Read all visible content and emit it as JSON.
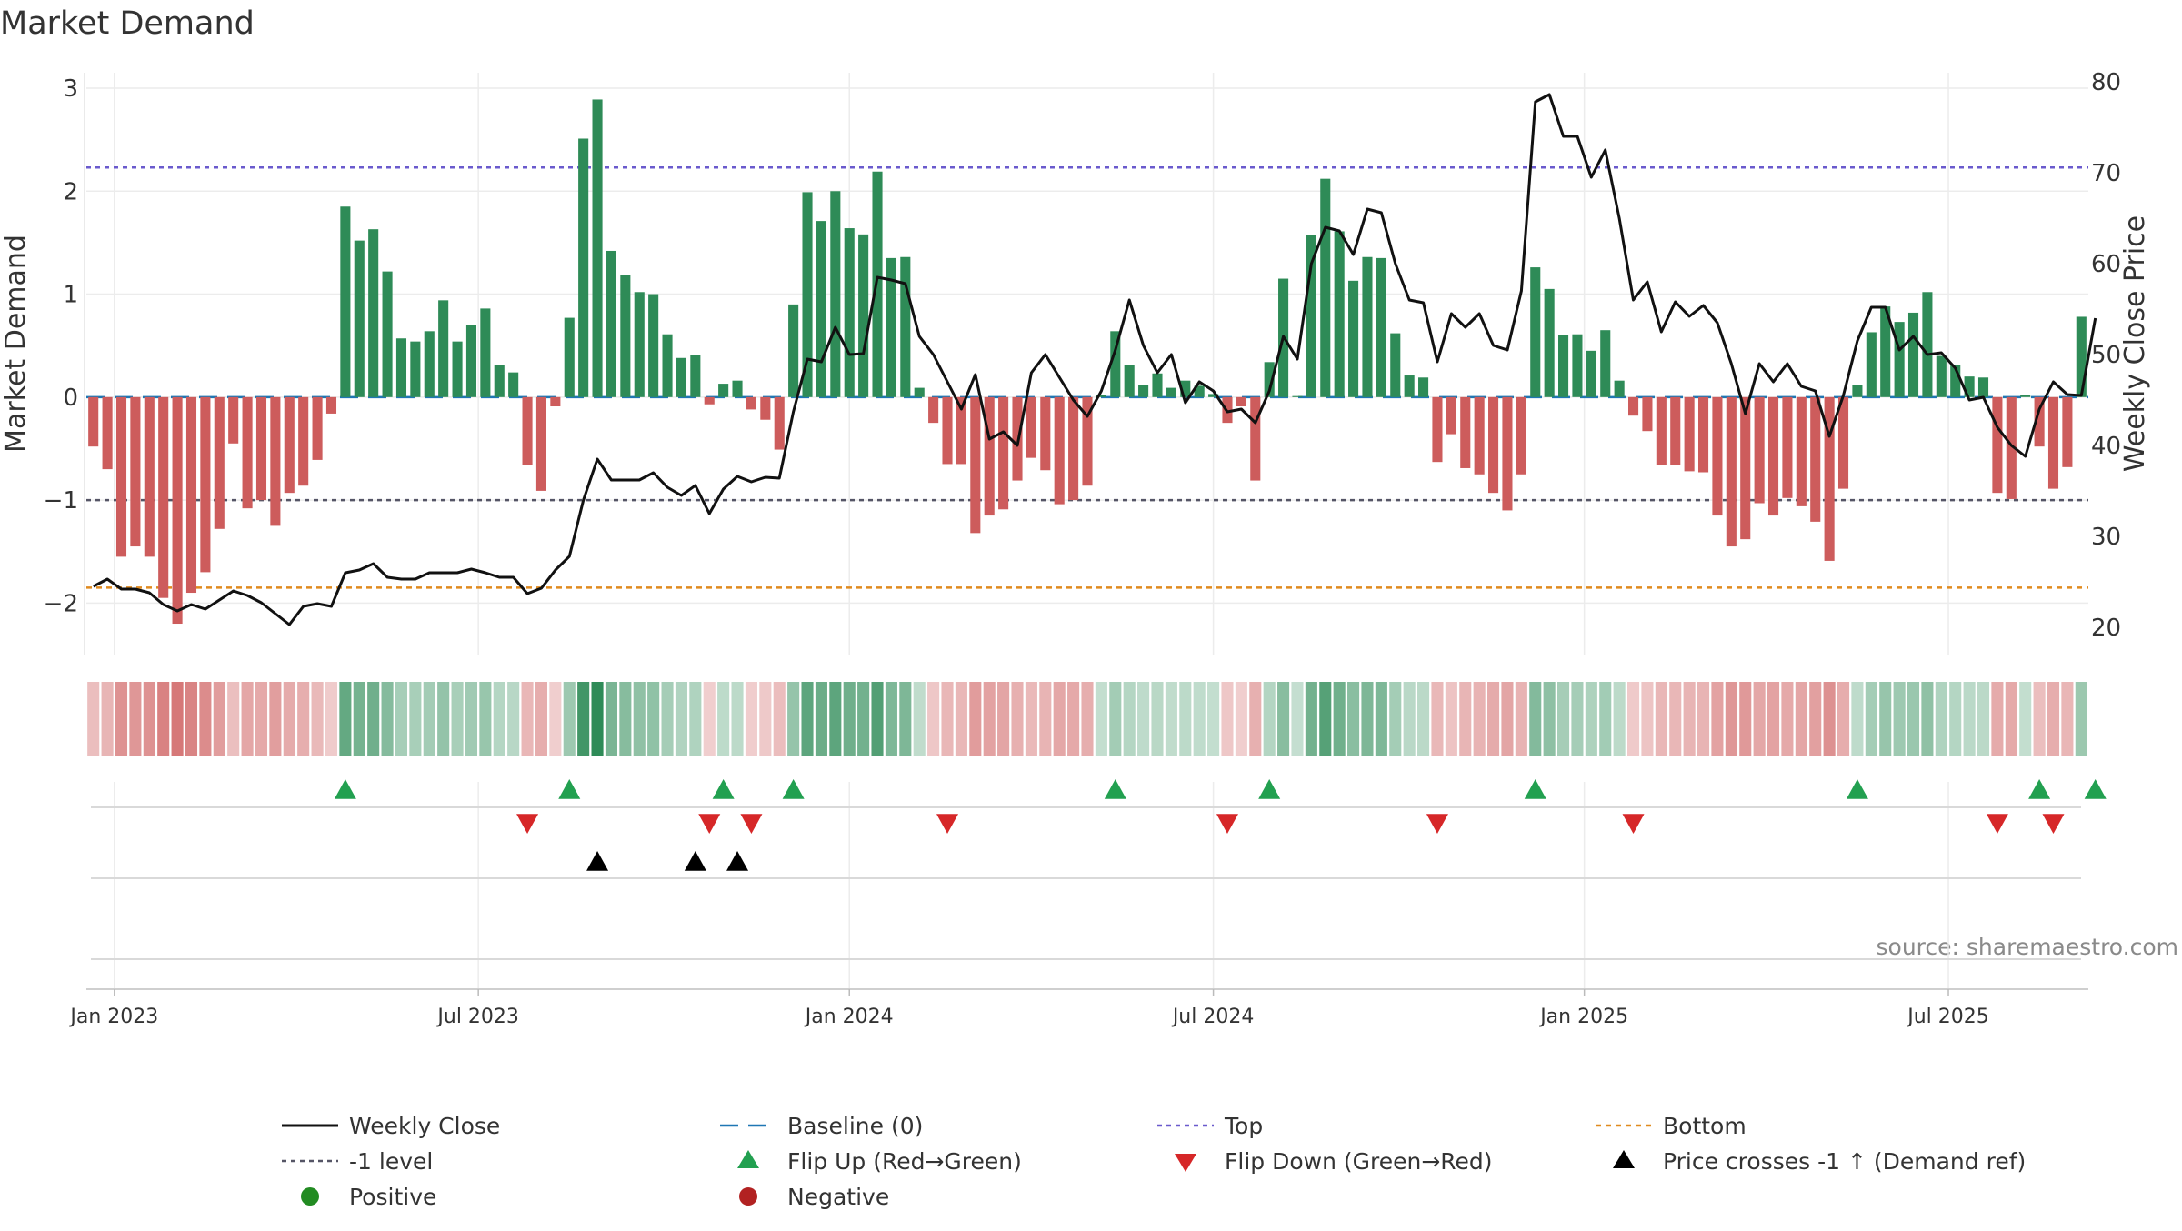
{
  "chart_data": {
    "type": "bar",
    "title": "Market Demand",
    "ylabel_left": "Market Demand",
    "ylabel_right": "Weekly Close Price",
    "source": "source: sharemaestro.com",
    "ylim_left": [
      -2.5,
      3.15
    ],
    "ylim_right": [
      17,
      81
    ],
    "yticks_left": [
      {
        "v": 3,
        "label": "3"
      },
      {
        "v": 2,
        "label": "2"
      },
      {
        "v": 1,
        "label": "1"
      },
      {
        "v": 0,
        "label": "0"
      },
      {
        "v": -1,
        "label": "−1"
      },
      {
        "v": -2,
        "label": "−2"
      }
    ],
    "yticks_right": [
      {
        "v": 80,
        "label": "80"
      },
      {
        "v": 70,
        "label": "70"
      },
      {
        "v": 60,
        "label": "60"
      },
      {
        "v": 50,
        "label": "50"
      },
      {
        "v": 40,
        "label": "40"
      },
      {
        "v": 30,
        "label": "30"
      },
      {
        "v": 20,
        "label": "20"
      }
    ],
    "xticks": [
      {
        "week": 2,
        "label": "Jan 2023"
      },
      {
        "week": 28,
        "label": "Jul 2023"
      },
      {
        "week": 54.5,
        "label": "Jan 2024"
      },
      {
        "week": 80.5,
        "label": "Jul 2024"
      },
      {
        "week": 107,
        "label": "Jan 2025"
      },
      {
        "week": 133,
        "label": "Jul 2025"
      }
    ],
    "reference_lines": {
      "top": 2.23,
      "bottom": -1.85,
      "minus_one": -1,
      "baseline": 0
    },
    "colors": {
      "positive_bar": "#2e8b57",
      "negative_bar": "#cd5c5c",
      "close": "#111111",
      "baseline": "#1f77b4",
      "top": "#6a5acd",
      "bottom": "#e08a1e",
      "minus_one": "#555566",
      "flip_up": "#22a050",
      "flip_down": "#d62728",
      "cross": "#000000",
      "positive_dot": "#228b22",
      "negative_dot": "#b22222"
    },
    "demand": [
      -0.48,
      -0.7,
      -1.55,
      -1.45,
      -1.55,
      -1.95,
      -2.2,
      -1.9,
      -1.7,
      -1.28,
      -0.45,
      -1.08,
      -1.0,
      -1.25,
      -0.93,
      -0.86,
      -0.61,
      -0.16,
      1.85,
      1.52,
      1.63,
      1.22,
      0.57,
      0.54,
      0.64,
      0.94,
      0.54,
      0.7,
      0.86,
      0.31,
      0.24,
      -0.66,
      -0.91,
      -0.09,
      0.77,
      2.51,
      2.89,
      1.42,
      1.19,
      1.02,
      1.0,
      0.61,
      0.38,
      0.41,
      -0.07,
      0.13,
      0.16,
      -0.12,
      -0.22,
      -0.51,
      0.9,
      1.99,
      1.71,
      2.0,
      1.64,
      1.58,
      2.19,
      1.35,
      1.36,
      0.09,
      -0.25,
      -0.65,
      -0.65,
      -1.32,
      -1.15,
      -1.09,
      -0.81,
      -0.59,
      -0.71,
      -1.04,
      -1.0,
      -0.86,
      0.02,
      0.64,
      0.31,
      0.12,
      0.23,
      0.09,
      0.16,
      0.11,
      0.03,
      -0.25,
      -0.09,
      -0.81,
      0.34,
      1.15,
      0.01,
      1.57,
      2.12,
      1.61,
      1.13,
      1.36,
      1.35,
      0.62,
      0.21,
      0.19,
      -0.63,
      -0.36,
      -0.69,
      -0.75,
      -0.93,
      -1.1,
      -0.75,
      1.26,
      1.05,
      0.6,
      0.61,
      0.45,
      0.65,
      0.16,
      -0.18,
      -0.33,
      -0.66,
      -0.66,
      -0.72,
      -0.73,
      -1.15,
      -1.45,
      -1.38,
      -1.03,
      -1.15,
      -0.98,
      -1.06,
      -1.21,
      -1.59,
      -0.89,
      0.12,
      0.63,
      0.88,
      0.73,
      0.82,
      1.02,
      0.4,
      0.31,
      0.2,
      0.19,
      -0.93,
      -0.99,
      0.02,
      -0.48,
      -0.89,
      -0.68,
      0.78
    ],
    "weekly_close": [
      24.5,
      25.3,
      24.2,
      24.2,
      23.8,
      22.5,
      21.8,
      22.5,
      22.0,
      23.0,
      24.0,
      23.5,
      22.7,
      21.5,
      20.3,
      22.3,
      22.6,
      22.3,
      26.0,
      26.3,
      27.0,
      25.5,
      25.3,
      25.3,
      26.0,
      26.0,
      26.0,
      26.4,
      26.0,
      25.5,
      25.5,
      23.7,
      24.3,
      26.3,
      27.8,
      34.0,
      38.5,
      36.2,
      36.2,
      36.2,
      37.0,
      35.4,
      34.5,
      35.6,
      32.5,
      35.2,
      36.6,
      36.0,
      36.5,
      36.4,
      43.7,
      49.5,
      49.2,
      53.0,
      50.0,
      50.1,
      58.5,
      58.2,
      57.8,
      52.0,
      50.0,
      47.0,
      44.0,
      47.8,
      40.7,
      41.5,
      40.0,
      48.0,
      50.0,
      47.5,
      45.0,
      43.2,
      46.0,
      50.5,
      56.0,
      51.0,
      48.0,
      50.0,
      44.7,
      47.0,
      46.0,
      43.7,
      44.0,
      42.5,
      46.0,
      52.0,
      49.5,
      60.0,
      64.0,
      63.6,
      61.0,
      66.0,
      65.6,
      60.0,
      56.0,
      55.7,
      49.2,
      54.5,
      53.0,
      54.5,
      51.0,
      50.5,
      57.0,
      77.8,
      78.6,
      74.0,
      74.0,
      69.5,
      72.5,
      65.0,
      56.0,
      58.0,
      52.5,
      55.8,
      54.2,
      55.4,
      53.5,
      49.0,
      43.5,
      49.0,
      47.0,
      49.0,
      46.5,
      46.0,
      41.0,
      45.5,
      51.5,
      55.2,
      55.2,
      50.5,
      52.0,
      50.0,
      50.2,
      48.5,
      45.0,
      45.3,
      42.0,
      40.0,
      38.8,
      44.0,
      47.0,
      45.6,
      45.5,
      54.0
    ],
    "flip_up": [
      18,
      34,
      45,
      50,
      73,
      84,
      103,
      126,
      139,
      143
    ],
    "flip_down": [
      31,
      44,
      47,
      61,
      81,
      96,
      110,
      136,
      140
    ],
    "price_crosses": [
      36,
      43,
      46
    ],
    "legend": [
      {
        "key": "close",
        "label": "Weekly Close"
      },
      {
        "key": "baseline",
        "label": "Baseline (0)"
      },
      {
        "key": "top",
        "label": "Top"
      },
      {
        "key": "bottom",
        "label": "Bottom"
      },
      {
        "key": "minus_one",
        "label": "-1 level"
      },
      {
        "key": "flip_up",
        "label": "Flip Up (Red→Green)"
      },
      {
        "key": "flip_down",
        "label": "Flip Down (Green→Red)"
      },
      {
        "key": "cross",
        "label": "Price crosses -1 ↑ (Demand ref)"
      },
      {
        "key": "positive_dot",
        "label": "Positive"
      },
      {
        "key": "negative_dot",
        "label": "Negative"
      }
    ]
  }
}
